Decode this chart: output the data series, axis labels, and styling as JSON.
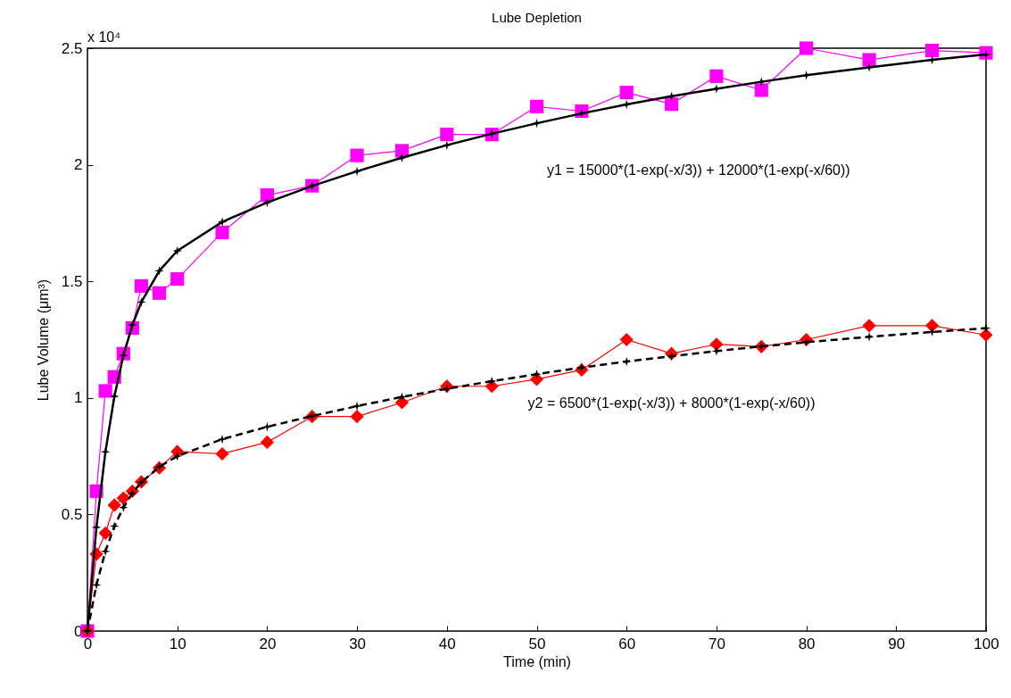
{
  "chart_data": {
    "type": "line",
    "title": "Lube Depletion",
    "xlabel": "Time (min)",
    "ylabel": "Lube Volume (μm³)",
    "x": [
      0,
      1,
      2,
      3,
      4,
      5,
      6,
      8,
      10,
      15,
      20,
      25,
      30,
      35,
      40,
      45,
      50,
      55,
      60,
      65,
      70,
      75,
      80,
      87,
      94,
      100
    ],
    "series": [
      {
        "color": "#ff00ff",
        "marker": "square",
        "line_style": "solid",
        "values": [
          0,
          0.6,
          1.03,
          1.09,
          1.19,
          1.3,
          1.48,
          1.45,
          1.51,
          1.71,
          1.87,
          1.91,
          2.04,
          2.06,
          2.13,
          2.13,
          2.25,
          2.23,
          2.31,
          2.26,
          2.38,
          2.32,
          2.5,
          2.45,
          2.49,
          2.48
        ]
      },
      {
        "color": "#ff0000",
        "marker": "diamond",
        "line_style": "solid",
        "values": [
          0,
          0.33,
          0.42,
          0.54,
          0.57,
          0.6,
          0.64,
          0.7,
          0.77,
          0.76,
          0.81,
          0.92,
          0.92,
          0.98,
          1.05,
          1.05,
          1.08,
          1.12,
          1.25,
          1.19,
          1.23,
          1.22,
          1.25,
          1.31,
          1.31,
          1.27
        ]
      },
      {
        "color": "#000000",
        "marker": "star",
        "line_style": "solid",
        "values": [
          0,
          0.445,
          0.769,
          1.007,
          1.182,
          1.313,
          1.411,
          1.545,
          1.631,
          1.755,
          1.838,
          1.909,
          1.972,
          2.03,
          2.084,
          2.133,
          2.178,
          2.22,
          2.259,
          2.294,
          2.326,
          2.356,
          2.384,
          2.418,
          2.45,
          2.473
        ]
      },
      {
        "color": "#000000",
        "marker": "star",
        "line_style": "dashed",
        "values": [
          0,
          0.198,
          0.342,
          0.45,
          0.53,
          0.591,
          0.638,
          0.705,
          0.75,
          0.823,
          0.876,
          0.922,
          0.965,
          1.004,
          1.039,
          1.072,
          1.102,
          1.13,
          1.156,
          1.179,
          1.201,
          1.221,
          1.239,
          1.262,
          1.283,
          1.299
        ]
      }
    ],
    "xlim": [
      0,
      100
    ],
    "xticks": [
      0,
      10,
      20,
      30,
      40,
      50,
      60,
      70,
      80,
      90,
      100
    ],
    "ylim": [
      0,
      2.5
    ],
    "yticks": [
      0,
      0.5,
      1,
      1.5,
      2,
      2.5
    ],
    "grid": false,
    "annotations": [
      "x 10⁴",
      "y1 = 15000*(1-exp(-x/3)) + 12000*(1-exp(-x/60))",
      "y2 = 6500*(1-exp(-x/3)) + 8000*(1-exp(-x/60))"
    ]
  }
}
